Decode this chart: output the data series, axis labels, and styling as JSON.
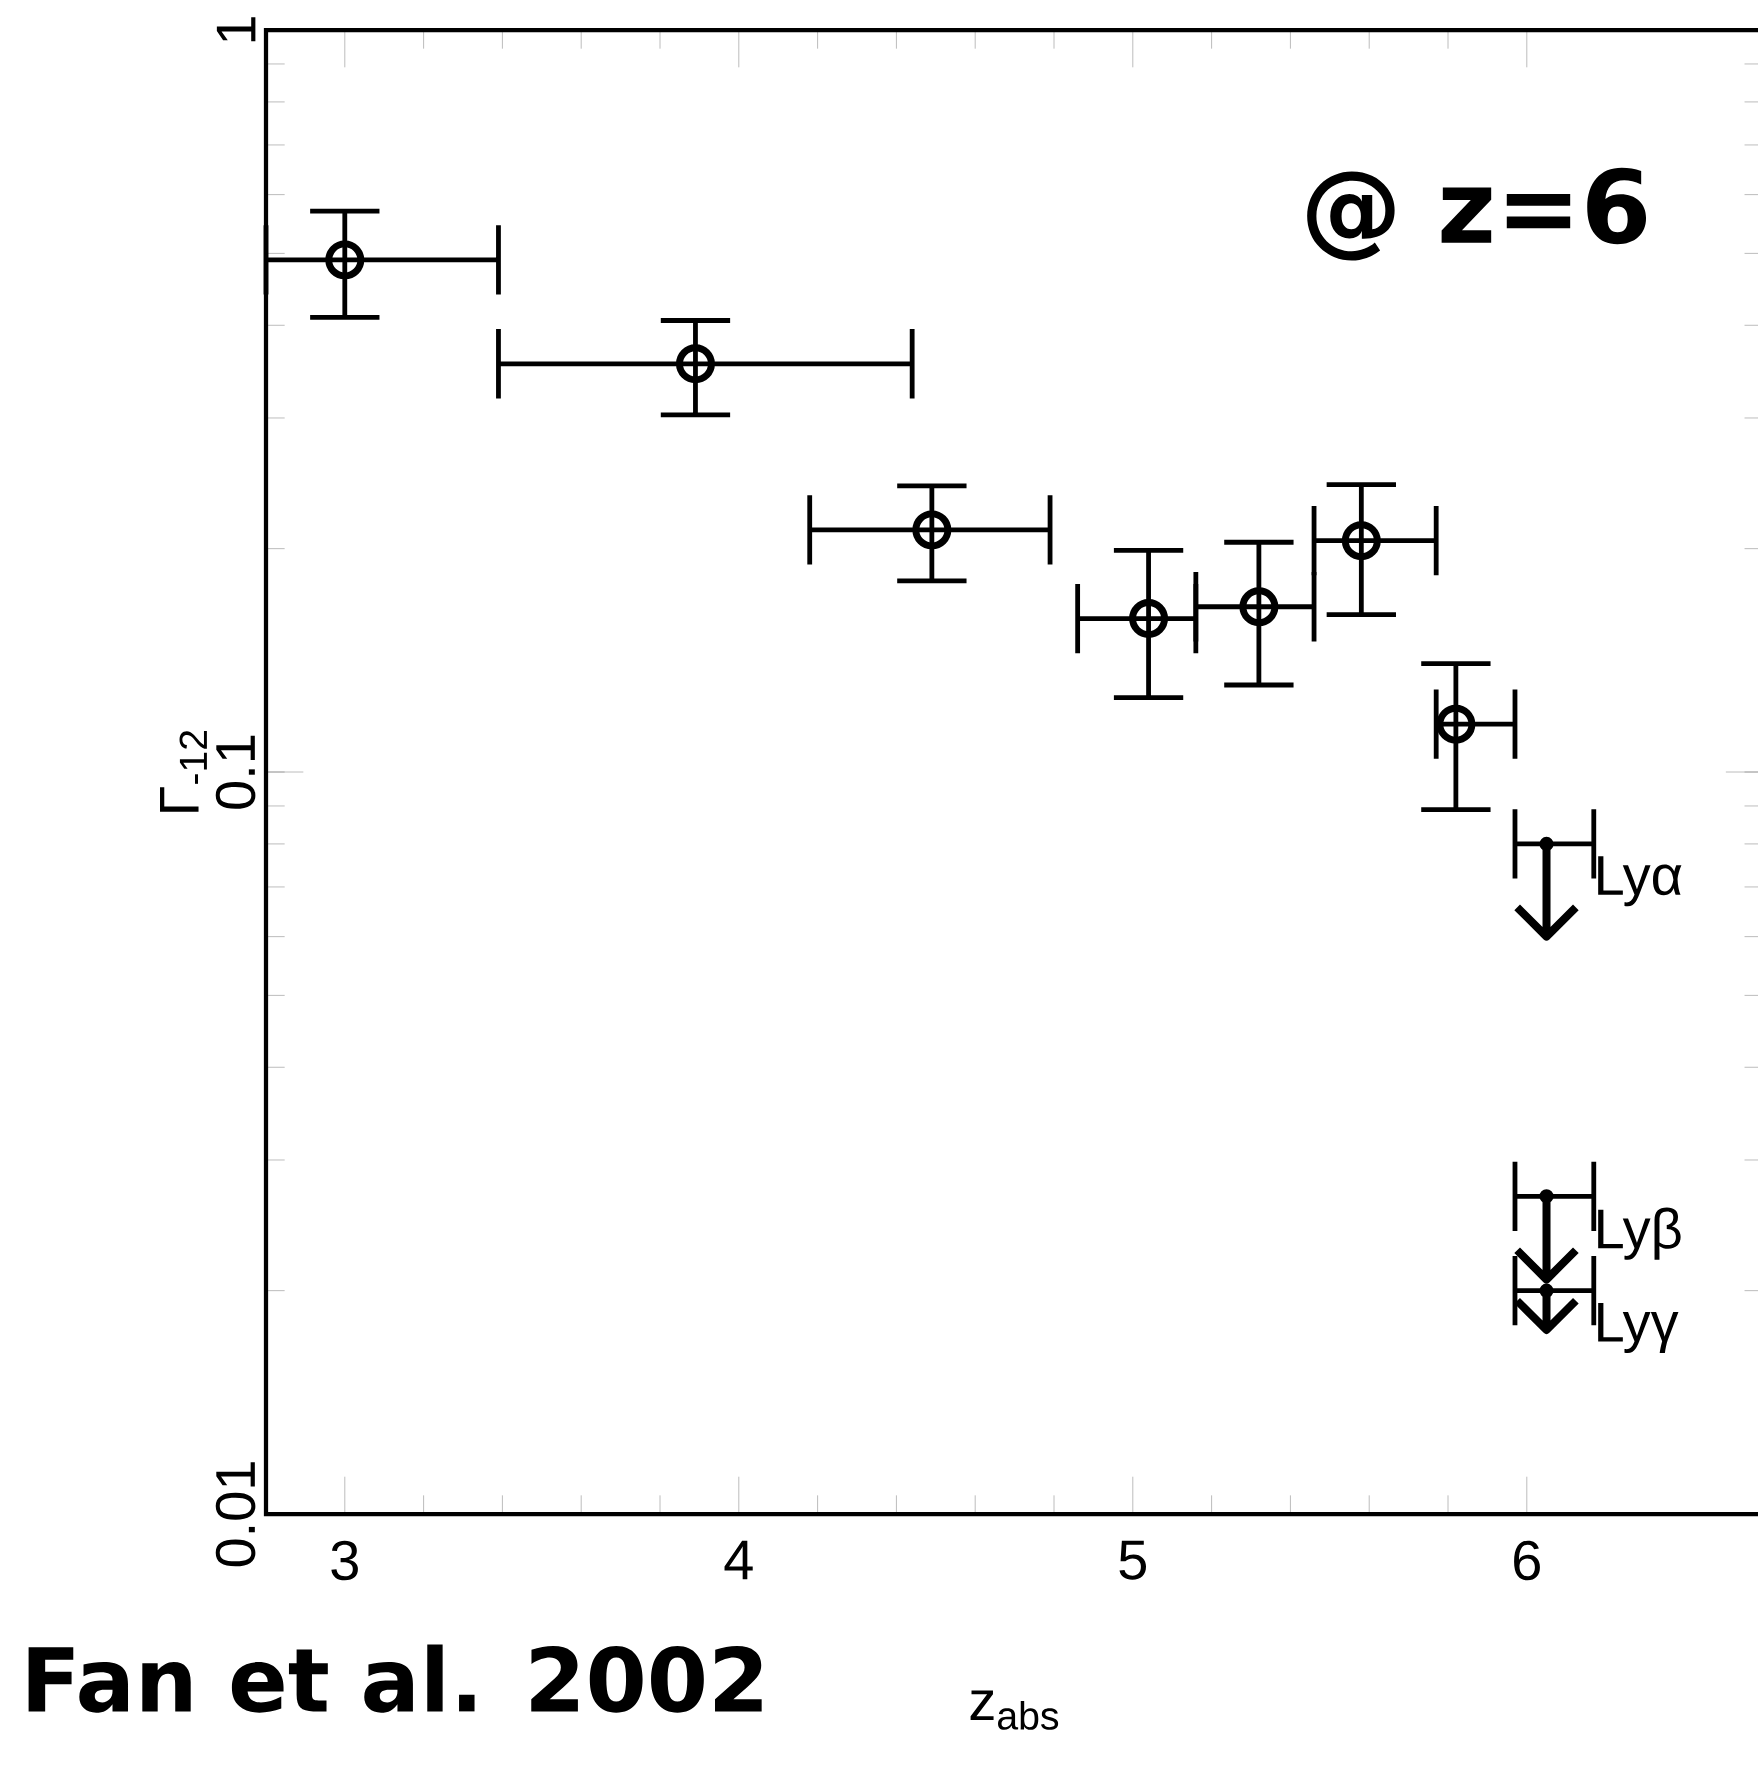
{
  "chart_data": {
    "type": "scatter",
    "xlabel": "z$_{abs}$",
    "ylabel": "Γ$_{-12}$",
    "xlim": [
      2.8,
      6.6
    ],
    "ylim": [
      0.01,
      1
    ],
    "xticks": [
      3,
      4,
      5,
      6
    ],
    "yticks": [
      0.01,
      0.1,
      1
    ],
    "log": "y",
    "series": [
      {
        "color": "#000000",
        "marker": "circle",
        "x": [
          3.0,
          3.89,
          4.49,
          5.04,
          5.32,
          5.58,
          5.82
        ],
        "values": [
          0.49,
          0.355,
          0.212,
          0.161,
          0.167,
          0.205,
          0.116
        ],
        "errors": [
          [
            0.41,
            0.57
          ],
          [
            0.303,
            0.406
          ],
          [
            0.181,
            0.243
          ],
          [
            0.126,
            0.199
          ],
          [
            0.131,
            0.204
          ],
          [
            0.163,
            0.244
          ],
          [
            0.089,
            0.14
          ]
        ],
        "xerrors": [
          [
            2.8,
            3.39
          ],
          [
            3.39,
            4.44
          ],
          [
            4.18,
            4.79
          ],
          [
            4.86,
            5.16
          ],
          [
            5.16,
            5.46
          ],
          [
            5.46,
            5.77
          ],
          [
            5.77,
            5.97
          ]
        ]
      },
      {
        "color": "#000000",
        "x": [
          6.05,
          6.05,
          6.05
        ],
        "values": [
          0.08,
          0.0268,
          0.02
        ],
        "errors": [
          [
            0.06,
            0.08
          ],
          [
            0.0207,
            0.0268
          ],
          [
            0.0177,
            0.02
          ]
        ],
        "xerrors": [
          [
            5.97,
            6.17
          ],
          [
            5.97,
            6.17
          ],
          [
            5.97,
            6.17
          ]
        ]
      }
    ],
    "annotations": [
      "@ z=6",
      "Fan et al. 2002",
      "Lyα",
      "Lyβ",
      "Lyγ"
    ]
  }
}
